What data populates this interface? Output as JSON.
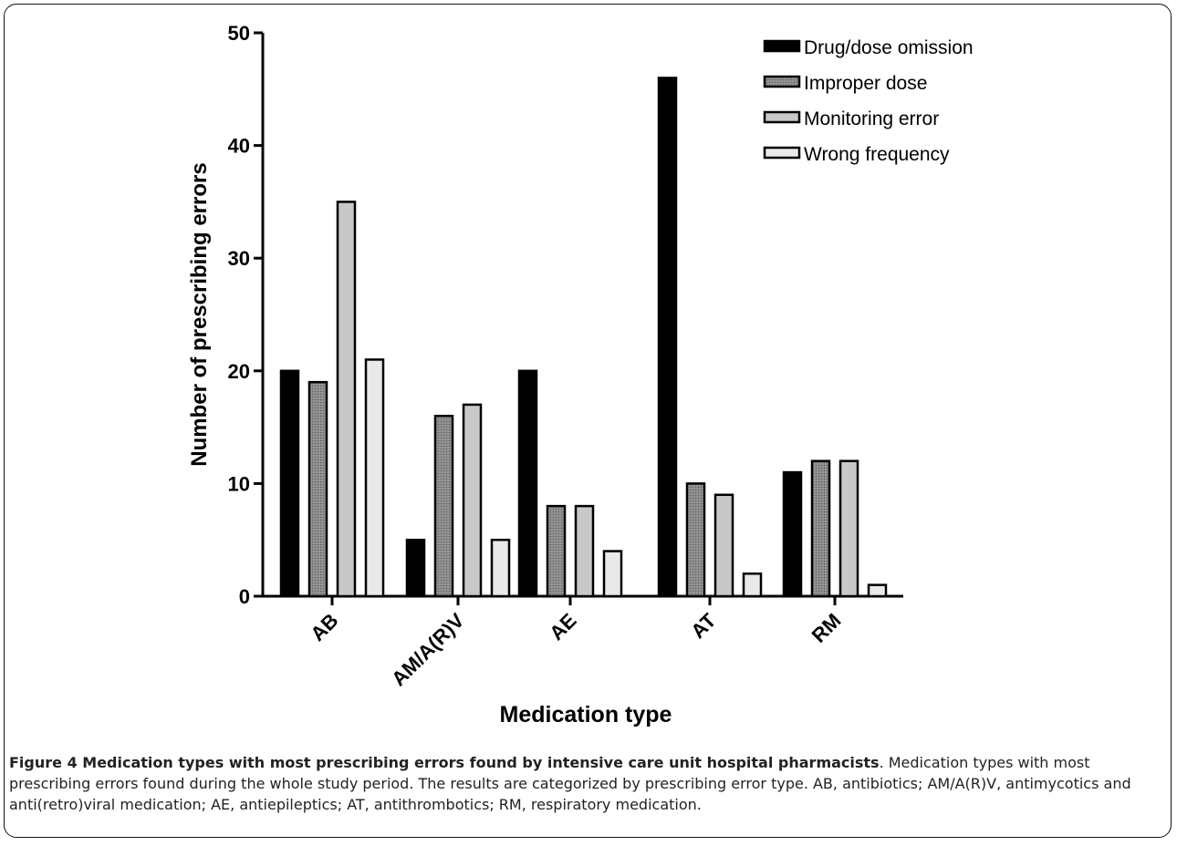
{
  "chart_data": {
    "type": "bar",
    "categories": [
      "AB",
      "AM/A(R)V",
      "AE",
      "AT",
      "RM"
    ],
    "series": [
      {
        "name": "Drug/dose omission",
        "values": [
          20,
          5,
          20,
          46,
          11
        ]
      },
      {
        "name": "Improper dose",
        "values": [
          19,
          16,
          8,
          10,
          12
        ]
      },
      {
        "name": "Monitoring error",
        "values": [
          35,
          17,
          8,
          9,
          12
        ]
      },
      {
        "name": "Wrong frequency",
        "values": [
          21,
          5,
          4,
          2,
          1
        ]
      }
    ],
    "xlabel": "Medication type",
    "ylabel": "Number of prescribing errors",
    "ylim": [
      0,
      50
    ],
    "yticks": [
      0,
      10,
      20,
      30,
      40,
      50
    ],
    "legend_position": "top-right",
    "grid": false,
    "series_colors": [
      "#000000",
      "#7a7a7a",
      "#c8c8c8",
      "#e8e8e8"
    ]
  },
  "caption": {
    "label": "Figure 4 Medication types with most prescribing errors found by intensive care unit hospital pharmacists",
    "text": ". Medication types with most prescribing errors found during the whole study period. The results are categorized by prescribing error type. AB, antibiotics; AM/A(R)V, antimycotics and anti(retro)viral medication; AE, antiepileptics; AT, antithrombotics; RM, respiratory medication."
  }
}
